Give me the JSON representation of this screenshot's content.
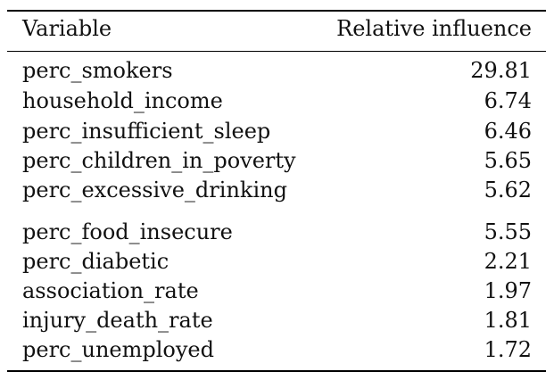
{
  "table": {
    "headers": {
      "variable": "Variable",
      "influence": "Relative influence"
    },
    "rows": [
      {
        "variable": "perc_smokers",
        "influence": "29.81"
      },
      {
        "variable": "household_income",
        "influence": "6.74"
      },
      {
        "variable": "perc_insufficient_sleep",
        "influence": "6.46"
      },
      {
        "variable": "perc_children_in_poverty",
        "influence": "5.65"
      },
      {
        "variable": "perc_excessive_drinking",
        "influence": "5.62"
      },
      {
        "variable": "perc_food_insecure",
        "influence": "5.55"
      },
      {
        "variable": "perc_diabetic",
        "influence": "2.21"
      },
      {
        "variable": "association_rate",
        "influence": "1.97"
      },
      {
        "variable": "injury_death_rate",
        "influence": "1.81"
      },
      {
        "variable": "perc_unemployed",
        "influence": "1.72"
      }
    ]
  }
}
